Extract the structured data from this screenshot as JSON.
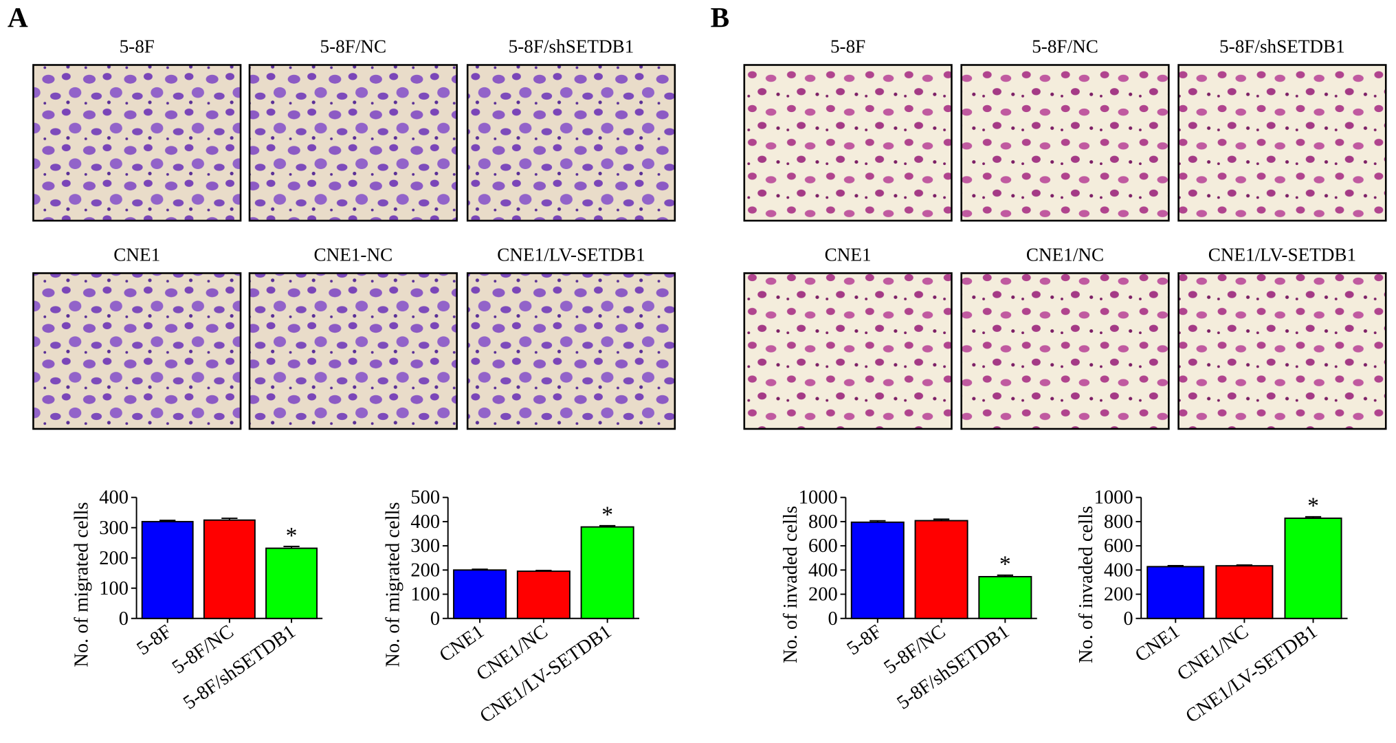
{
  "panels": [
    {
      "label": "A",
      "images": [
        [
          "5-8F",
          "5-8F/NC",
          "5-8F/shSETDB1"
        ],
        [
          "CNE1",
          "CNE1-NC",
          "CNE1/LV-SETDB1"
        ]
      ]
    },
    {
      "label": "B",
      "images": [
        [
          "5-8F",
          "5-8F/NC",
          "5-8F/shSETDB1"
        ],
        [
          "CNE1",
          "CNE1/NC",
          "CNE1/LV-SETDB1"
        ]
      ]
    }
  ],
  "chart_data": [
    {
      "type": "bar",
      "y_label": "No. of migrated cells",
      "categories": [
        "5-8F",
        "5-8F/NC",
        "5-8F/shSETDB1"
      ],
      "values": [
        320,
        325,
        232
      ],
      "errors": [
        4,
        6,
        6
      ],
      "significance": [
        null,
        null,
        "*"
      ],
      "colors": [
        "#0000ff",
        "#ff0000",
        "#00ff00"
      ],
      "ylim": [
        0,
        400
      ],
      "yticks": [
        0,
        100,
        200,
        300,
        400
      ]
    },
    {
      "type": "bar",
      "y_label": "No. of migrated cells",
      "categories": [
        "CNE1",
        "CNE1/NC",
        "CNE1/LV-SETDB1"
      ],
      "values": [
        200,
        195,
        378
      ],
      "errors": [
        3,
        3,
        5
      ],
      "significance": [
        null,
        null,
        "*"
      ],
      "colors": [
        "#0000ff",
        "#ff0000",
        "#00ff00"
      ],
      "ylim": [
        0,
        500
      ],
      "yticks": [
        0,
        100,
        200,
        300,
        400,
        500
      ]
    },
    {
      "type": "bar",
      "y_label": "No. of invaded cells",
      "categories": [
        "5-8F",
        "5-8F/NC",
        "5-8F/shSETDB1"
      ],
      "values": [
        795,
        808,
        345
      ],
      "errors": [
        12,
        12,
        12
      ],
      "significance": [
        null,
        null,
        "*"
      ],
      "colors": [
        "#0000ff",
        "#ff0000",
        "#00ff00"
      ],
      "ylim": [
        0,
        1000
      ],
      "yticks": [
        0,
        200,
        400,
        600,
        800,
        1000
      ]
    },
    {
      "type": "bar",
      "y_label": "No. of invaded cells",
      "categories": [
        "CNE1",
        "CNE1/NC",
        "CNE1/LV-SETDB1"
      ],
      "values": [
        428,
        435,
        828
      ],
      "errors": [
        8,
        6,
        12
      ],
      "significance": [
        null,
        null,
        "*"
      ],
      "colors": [
        "#0000ff",
        "#ff0000",
        "#00ff00"
      ],
      "ylim": [
        0,
        1000
      ],
      "yticks": [
        0,
        200,
        400,
        600,
        800,
        1000
      ]
    }
  ]
}
